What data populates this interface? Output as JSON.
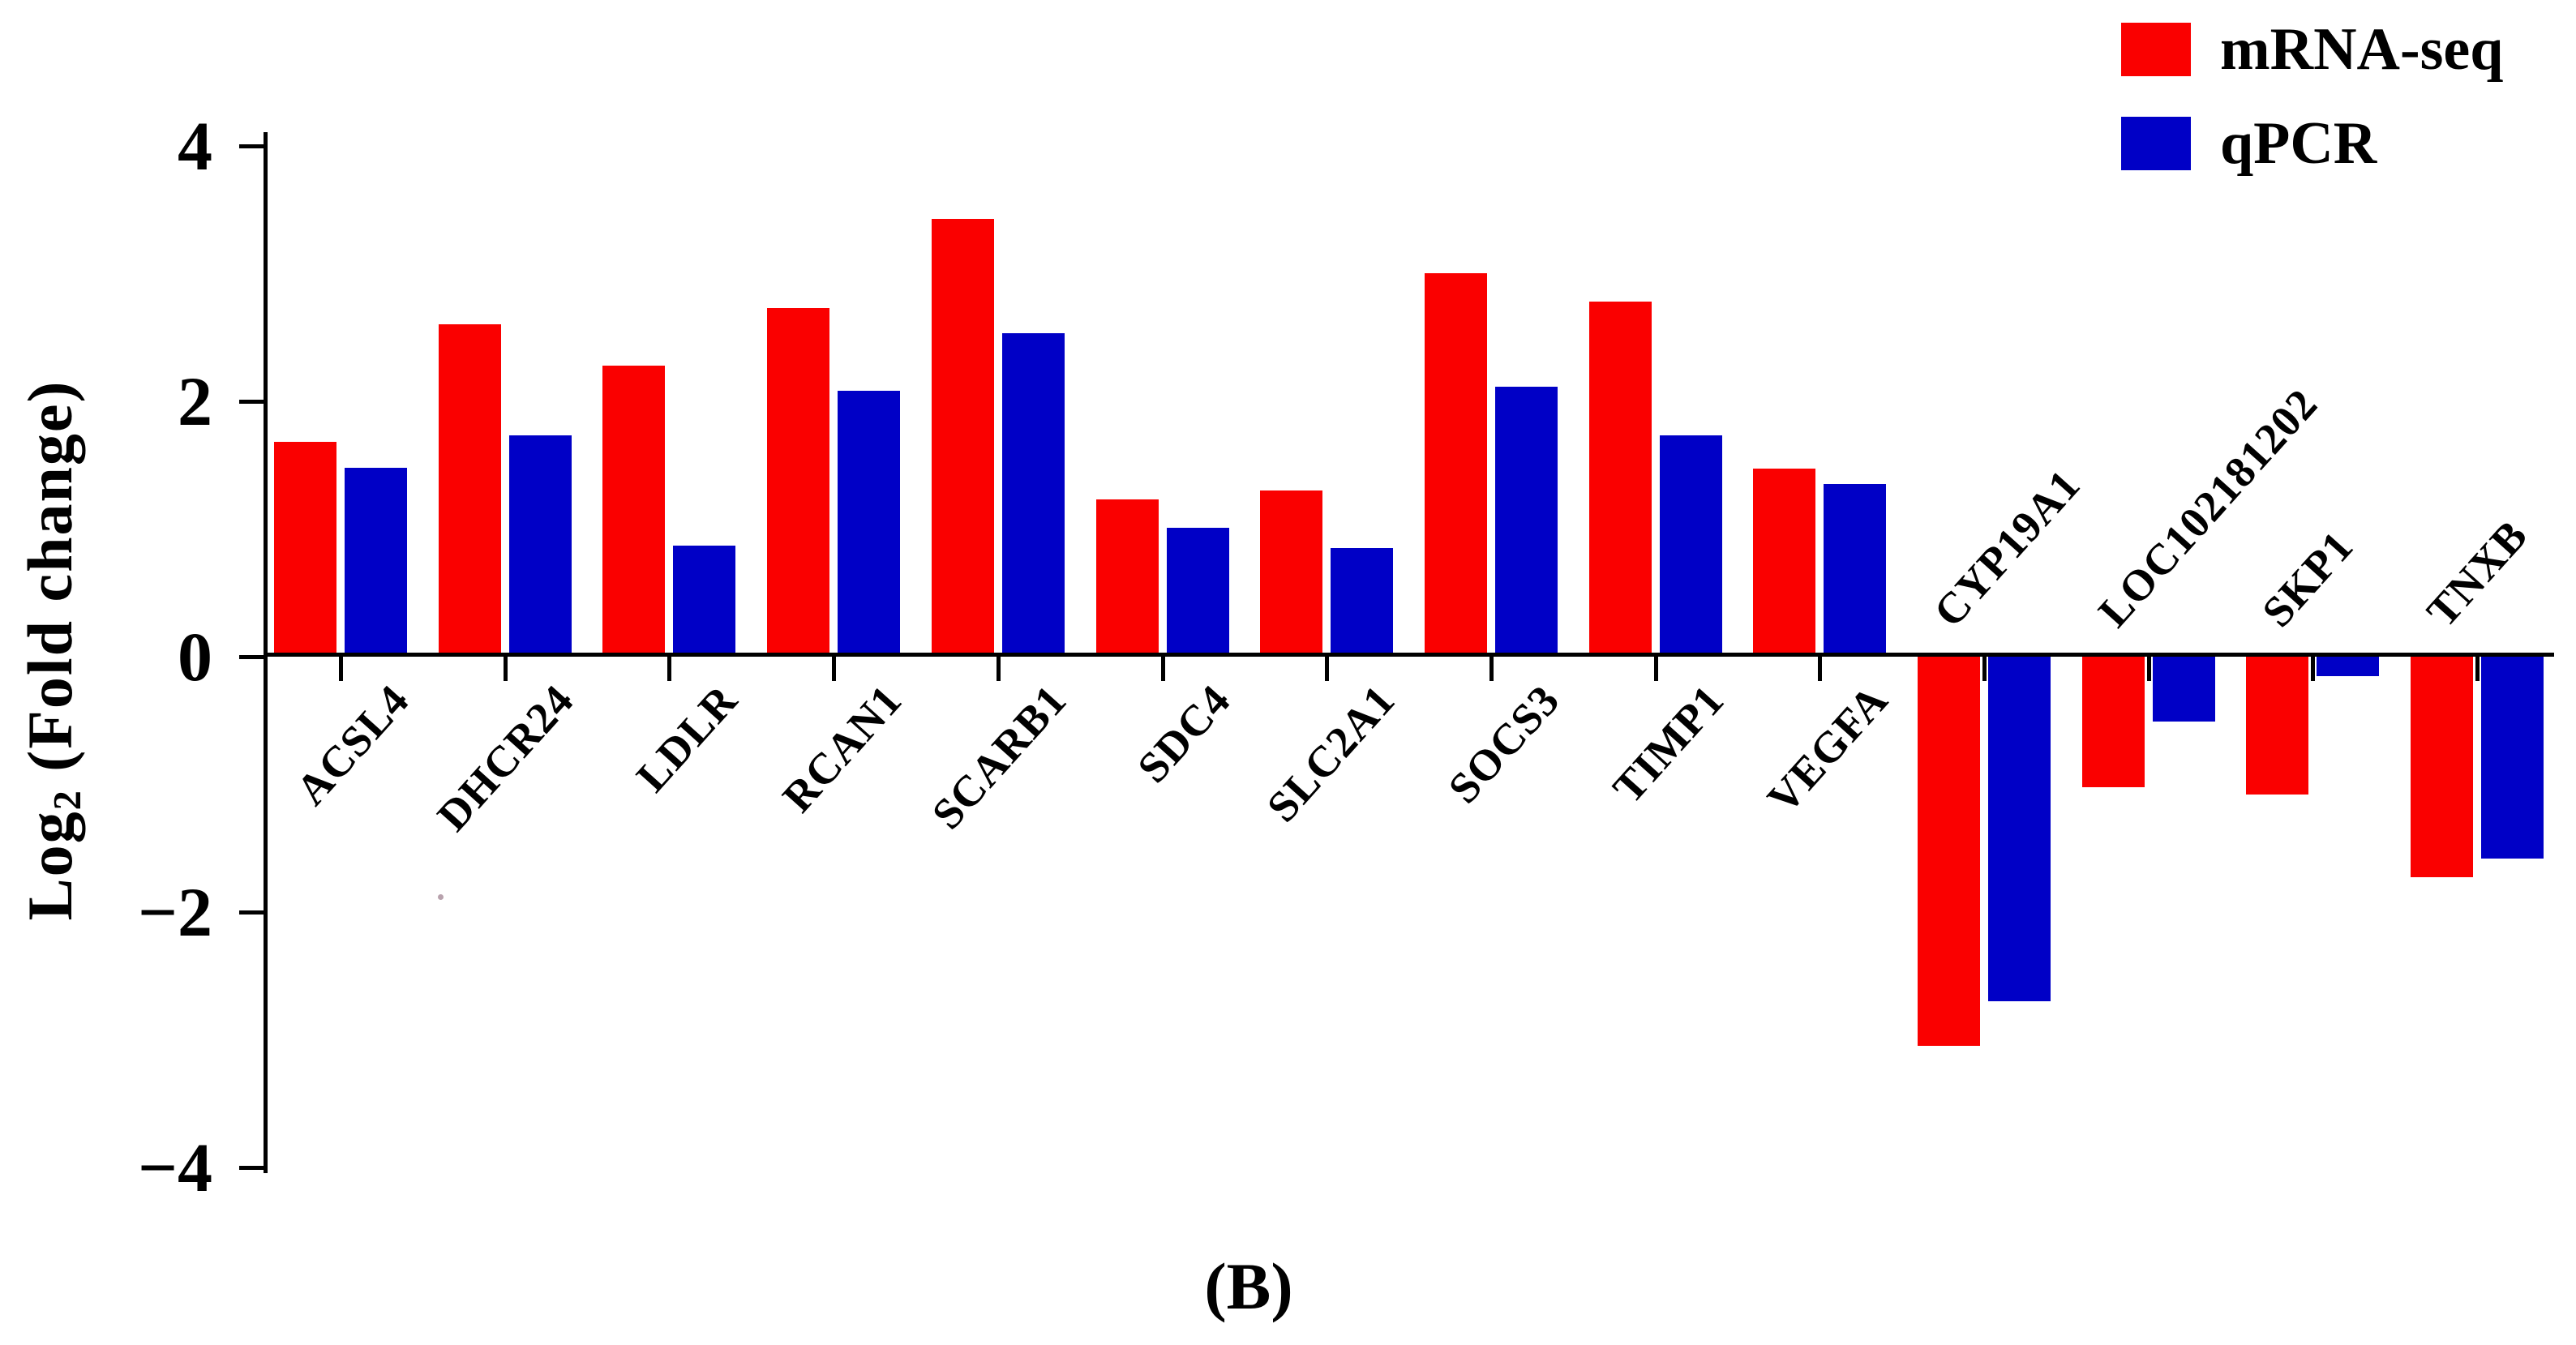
{
  "caption": "(B)",
  "y_axis": {
    "label_prefix": "Log",
    "label_sub": "2",
    "label_suffix": " (Fold change)",
    "ticks": [
      {
        "value": 4,
        "label": "4"
      },
      {
        "value": 2,
        "label": "2"
      },
      {
        "value": 0,
        "label": "0"
      },
      {
        "value": -2,
        "label": "−2"
      },
      {
        "value": -4,
        "label": "−4"
      }
    ]
  },
  "legend": [
    {
      "name": "mRNA-seq",
      "color": "#fa0000"
    },
    {
      "name": "qPCR",
      "color": "#0000c6"
    }
  ],
  "chart_data": {
    "type": "bar",
    "title": "",
    "xlabel": "",
    "ylabel": "Log2 (Fold change)",
    "ylim": [
      -4,
      4
    ],
    "grid": false,
    "legend_position": "top-right",
    "categories": [
      "ACSL4",
      "DHCR24",
      "LDLR",
      "RCAN1",
      "SCARB1",
      "SDC4",
      "SLC2A1",
      "SOCS3",
      "TIMP1",
      "VEGFA",
      "CYP19A1",
      "LOC102181202",
      "SKP1",
      "TNXB"
    ],
    "series": [
      {
        "name": "mRNA-seq",
        "color": "#fa0000",
        "values": [
          1.65,
          2.57,
          2.25,
          2.7,
          3.4,
          1.2,
          1.27,
          2.97,
          2.75,
          1.44,
          -3.05,
          -1.02,
          -1.08,
          -1.73
        ]
      },
      {
        "name": "qPCR",
        "color": "#0000c6",
        "values": [
          1.45,
          1.7,
          0.84,
          2.05,
          2.5,
          0.98,
          0.82,
          2.08,
          1.7,
          1.32,
          -2.7,
          -0.51,
          -0.15,
          -1.58
        ]
      }
    ]
  }
}
